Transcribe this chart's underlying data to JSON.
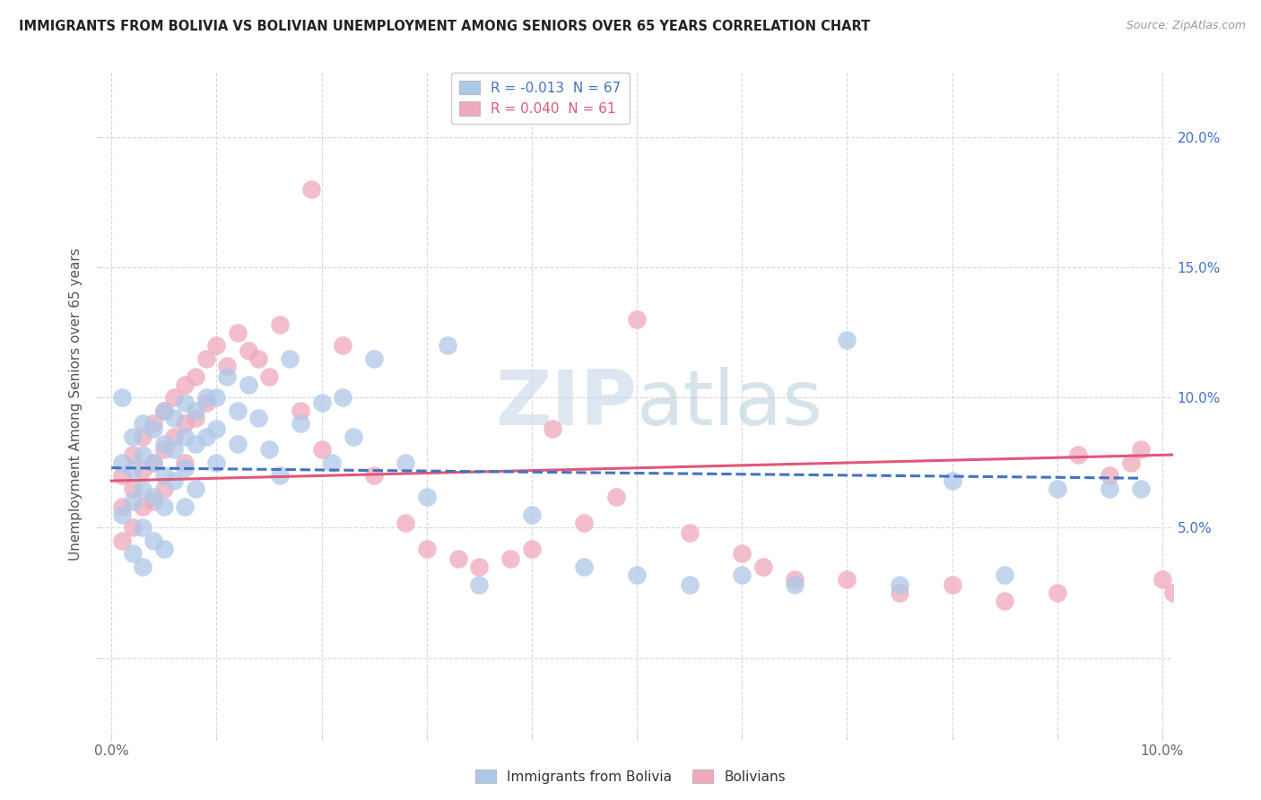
{
  "title": "IMMIGRANTS FROM BOLIVIA VS BOLIVIAN UNEMPLOYMENT AMONG SENIORS OVER 65 YEARS CORRELATION CHART",
  "source": "Source: ZipAtlas.com",
  "ylabel": "Unemployment Among Seniors over 65 years",
  "xlim": [
    -0.001,
    0.101
  ],
  "ylim": [
    -0.03,
    0.225
  ],
  "xticks": [
    0.0,
    0.01,
    0.02,
    0.03,
    0.04,
    0.05,
    0.06,
    0.07,
    0.08,
    0.09,
    0.1
  ],
  "yticks": [
    0.0,
    0.05,
    0.1,
    0.15,
    0.2
  ],
  "watermark": "ZIPatlas",
  "legend_entries": [
    {
      "label": "R = -0.013  N = 67",
      "color": "#aec8e8"
    },
    {
      "label": "R = 0.040  N = 61",
      "color": "#f0a8bc"
    }
  ],
  "blue_color": "#aec8e8",
  "pink_color": "#f0a8bc",
  "blue_line_color": "#4472c4",
  "pink_line_color": "#e05878",
  "grid_color": "#d8d8d8",
  "background_color": "#ffffff",
  "blue_scatter_x": [
    0.001,
    0.001,
    0.001,
    0.002,
    0.002,
    0.002,
    0.002,
    0.003,
    0.003,
    0.003,
    0.003,
    0.003,
    0.004,
    0.004,
    0.004,
    0.004,
    0.005,
    0.005,
    0.005,
    0.005,
    0.005,
    0.006,
    0.006,
    0.006,
    0.007,
    0.007,
    0.007,
    0.007,
    0.008,
    0.008,
    0.008,
    0.009,
    0.009,
    0.01,
    0.01,
    0.01,
    0.011,
    0.012,
    0.012,
    0.013,
    0.014,
    0.015,
    0.016,
    0.017,
    0.018,
    0.02,
    0.021,
    0.022,
    0.023,
    0.025,
    0.028,
    0.03,
    0.032,
    0.035,
    0.04,
    0.045,
    0.05,
    0.055,
    0.06,
    0.065,
    0.07,
    0.075,
    0.08,
    0.085,
    0.09,
    0.095,
    0.098
  ],
  "blue_scatter_y": [
    0.1,
    0.075,
    0.055,
    0.085,
    0.072,
    0.06,
    0.04,
    0.09,
    0.078,
    0.065,
    0.05,
    0.035,
    0.088,
    0.075,
    0.062,
    0.045,
    0.095,
    0.082,
    0.07,
    0.058,
    0.042,
    0.092,
    0.08,
    0.068,
    0.098,
    0.085,
    0.073,
    0.058,
    0.095,
    0.082,
    0.065,
    0.1,
    0.085,
    0.1,
    0.088,
    0.075,
    0.108,
    0.095,
    0.082,
    0.105,
    0.092,
    0.08,
    0.07,
    0.115,
    0.09,
    0.098,
    0.075,
    0.1,
    0.085,
    0.115,
    0.075,
    0.062,
    0.12,
    0.028,
    0.055,
    0.035,
    0.032,
    0.028,
    0.032,
    0.028,
    0.122,
    0.028,
    0.068,
    0.032,
    0.065,
    0.065,
    0.065
  ],
  "pink_scatter_x": [
    0.001,
    0.001,
    0.001,
    0.002,
    0.002,
    0.002,
    0.003,
    0.003,
    0.003,
    0.004,
    0.004,
    0.004,
    0.005,
    0.005,
    0.005,
    0.006,
    0.006,
    0.007,
    0.007,
    0.007,
    0.008,
    0.008,
    0.009,
    0.009,
    0.01,
    0.011,
    0.012,
    0.013,
    0.014,
    0.015,
    0.016,
    0.018,
    0.019,
    0.02,
    0.022,
    0.025,
    0.028,
    0.03,
    0.033,
    0.035,
    0.038,
    0.04,
    0.042,
    0.045,
    0.048,
    0.05,
    0.055,
    0.06,
    0.062,
    0.065,
    0.07,
    0.075,
    0.08,
    0.085,
    0.09,
    0.092,
    0.095,
    0.097,
    0.098,
    0.1,
    0.101
  ],
  "pink_scatter_y": [
    0.07,
    0.058,
    0.045,
    0.078,
    0.065,
    0.05,
    0.085,
    0.072,
    0.058,
    0.09,
    0.075,
    0.06,
    0.095,
    0.08,
    0.065,
    0.1,
    0.085,
    0.105,
    0.09,
    0.075,
    0.108,
    0.092,
    0.115,
    0.098,
    0.12,
    0.112,
    0.125,
    0.118,
    0.115,
    0.108,
    0.128,
    0.095,
    0.18,
    0.08,
    0.12,
    0.07,
    0.052,
    0.042,
    0.038,
    0.035,
    0.038,
    0.042,
    0.088,
    0.052,
    0.062,
    0.13,
    0.048,
    0.04,
    0.035,
    0.03,
    0.03,
    0.025,
    0.028,
    0.022,
    0.025,
    0.078,
    0.07,
    0.075,
    0.08,
    0.03,
    0.025
  ],
  "blue_trend_x": [
    0.0,
    0.098
  ],
  "blue_trend_y": [
    0.073,
    0.069
  ],
  "pink_trend_x": [
    0.0,
    0.101
  ],
  "pink_trend_y": [
    0.068,
    0.078
  ]
}
